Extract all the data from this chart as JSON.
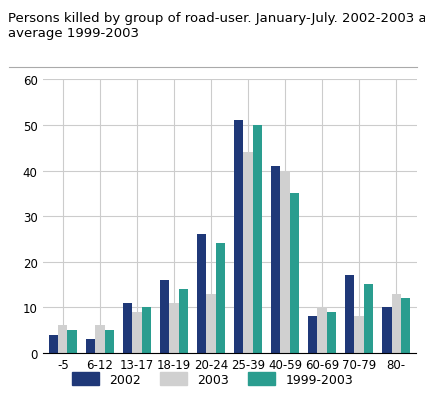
{
  "title": "Persons killed by group of road-user. January-July. 2002-2003 and\naverage 1999-2003",
  "categories": [
    "-5",
    "6-12",
    "13-17",
    "18-19",
    "20-24",
    "25-39",
    "40-59",
    "60-69",
    "70-79",
    "80-"
  ],
  "series": {
    "2002": [
      4,
      3,
      11,
      16,
      26,
      51,
      41,
      8,
      17,
      10
    ],
    "2003": [
      6,
      6,
      9,
      11,
      13,
      44,
      40,
      10,
      8,
      13
    ],
    "1999-2003": [
      5,
      5,
      10,
      14,
      24,
      50,
      35,
      9,
      15,
      12
    ]
  },
  "colors": {
    "2002": "#1f3878",
    "2003": "#d0d0d0",
    "1999-2003": "#2a9d8f"
  },
  "ylim": [
    0,
    60
  ],
  "yticks": [
    0,
    10,
    20,
    30,
    40,
    50,
    60
  ],
  "legend_labels": [
    "2002",
    "2003",
    "1999-2003"
  ],
  "bar_width": 0.25,
  "title_fontsize": 9.5,
  "tick_fontsize": 8.5,
  "legend_fontsize": 9,
  "background_color": "#ffffff",
  "grid_color": "#cccccc"
}
